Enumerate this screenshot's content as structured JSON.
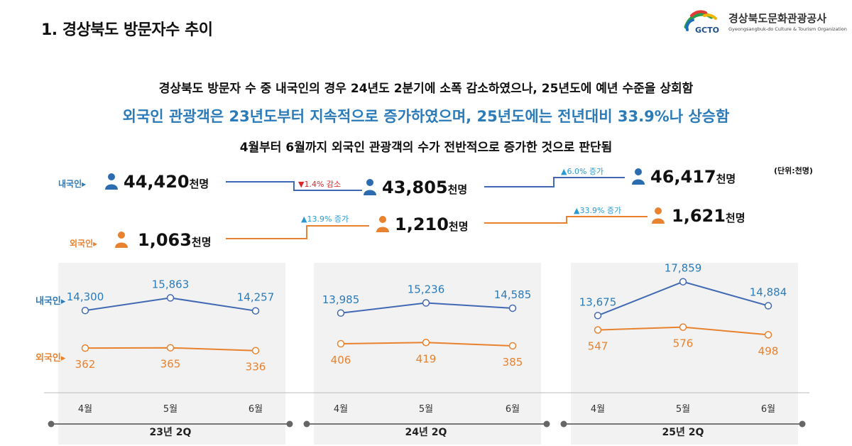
{
  "header": {
    "title": "1. 경상북도 방문자수 추이"
  },
  "logo": {
    "abbr": "GCTO",
    "name": "경상북도문화관광공사",
    "subtitle": "Gyeongsangbuk-do Culture & Tourism Organization"
  },
  "summary": {
    "line1": "경상북도 방문자 수 중 내국인의 경우 24년도 2분기에 소폭 감소하였으나, 25년도에 예년 수준을 상회함",
    "line2": "외국인 관광객은 23년도부터 지속적으로 증가하였으며, 25년도에는 전년대비 33.9%나 상승함",
    "line3": "4월부터 6월까지 외국인 관광객의 수가 전반적으로 증가한 것으로 판단됨"
  },
  "unit_note": "(단위:천명)",
  "colors": {
    "domestic": "#4169b3",
    "foreign": "#e8822f",
    "blue_text": "#2b7bb9",
    "decrease": "#d9262a",
    "increase": "#2b9ad2"
  },
  "totals": {
    "domestic": {
      "label": "내국인▸",
      "values": [
        {
          "num": "44,420",
          "unit": "천명"
        },
        {
          "num": "43,805",
          "unit": "천명"
        },
        {
          "num": "46,417",
          "unit": "천명"
        }
      ],
      "changes": [
        "▼1.4% 감소",
        "▲6.0% 증가"
      ]
    },
    "foreign": {
      "label": "외국인▸",
      "values": [
        {
          "num": "1,063",
          "unit": "천명"
        },
        {
          "num": "1,210",
          "unit": "천명"
        },
        {
          "num": "1,621",
          "unit": "천명"
        }
      ],
      "changes": [
        "▲13.9% 증가",
        "▲33.9% 증가"
      ]
    }
  },
  "chart_data": [
    {
      "type": "line",
      "title": "23년 2Q",
      "categories": [
        "4월",
        "5월",
        "6월"
      ],
      "series": [
        {
          "name": "내국인",
          "values": [
            14300,
            15863,
            14257
          ]
        },
        {
          "name": "외국인",
          "values": [
            362,
            365,
            336
          ]
        }
      ]
    },
    {
      "type": "line",
      "title": "24년 2Q",
      "categories": [
        "4월",
        "5월",
        "6월"
      ],
      "series": [
        {
          "name": "내국인",
          "values": [
            13985,
            15236,
            14585
          ]
        },
        {
          "name": "외국인",
          "values": [
            406,
            419,
            385
          ]
        }
      ]
    },
    {
      "type": "line",
      "title": "25년 2Q",
      "categories": [
        "4월",
        "5월",
        "6월"
      ],
      "series": [
        {
          "name": "내국인",
          "values": [
            13675,
            17859,
            14884
          ]
        },
        {
          "name": "외국인",
          "values": [
            547,
            576,
            498
          ]
        }
      ]
    }
  ]
}
